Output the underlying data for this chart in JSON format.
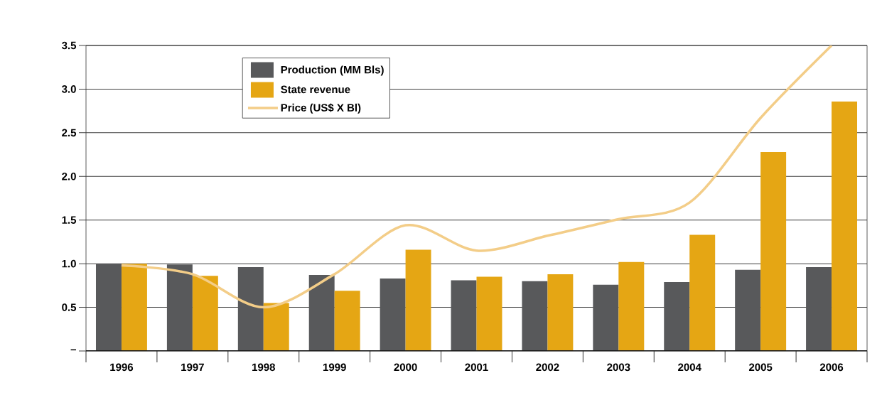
{
  "chart_data": {
    "type": "bar",
    "categories": [
      "1996",
      "1997",
      "1998",
      "1999",
      "2000",
      "2001",
      "2002",
      "2003",
      "2004",
      "2005",
      "2006"
    ],
    "series": [
      {
        "name": "Production (MM Bls)",
        "color": "#58595b",
        "values": [
          1.0,
          0.99,
          0.96,
          0.87,
          0.83,
          0.81,
          0.8,
          0.76,
          0.79,
          0.93,
          0.96
        ]
      },
      {
        "name": "State revenue",
        "color": "#e5a614",
        "values": [
          1.0,
          0.86,
          0.55,
          0.69,
          1.16,
          0.85,
          0.88,
          1.02,
          1.33,
          2.28,
          2.86
        ]
      },
      {
        "name": "Price (US$ X Bl)",
        "type": "line",
        "color": "#f3cd88",
        "line_style": "solid",
        "values": [
          0.98,
          0.88,
          0.5,
          0.88,
          1.44,
          1.15,
          1.32,
          1.51,
          1.7,
          2.67,
          3.5
        ]
      }
    ],
    "ylim": [
      0,
      3.5
    ],
    "yticks": [
      {
        "value": 0,
        "label": "–"
      },
      0.5,
      {
        "value": 1,
        "label": "1.0"
      },
      1.5,
      {
        "value": 2,
        "label": "2.0"
      },
      2.5,
      {
        "value": 3,
        "label": "3.0"
      },
      3.5
    ],
    "grid": "y",
    "legend": "top left"
  }
}
